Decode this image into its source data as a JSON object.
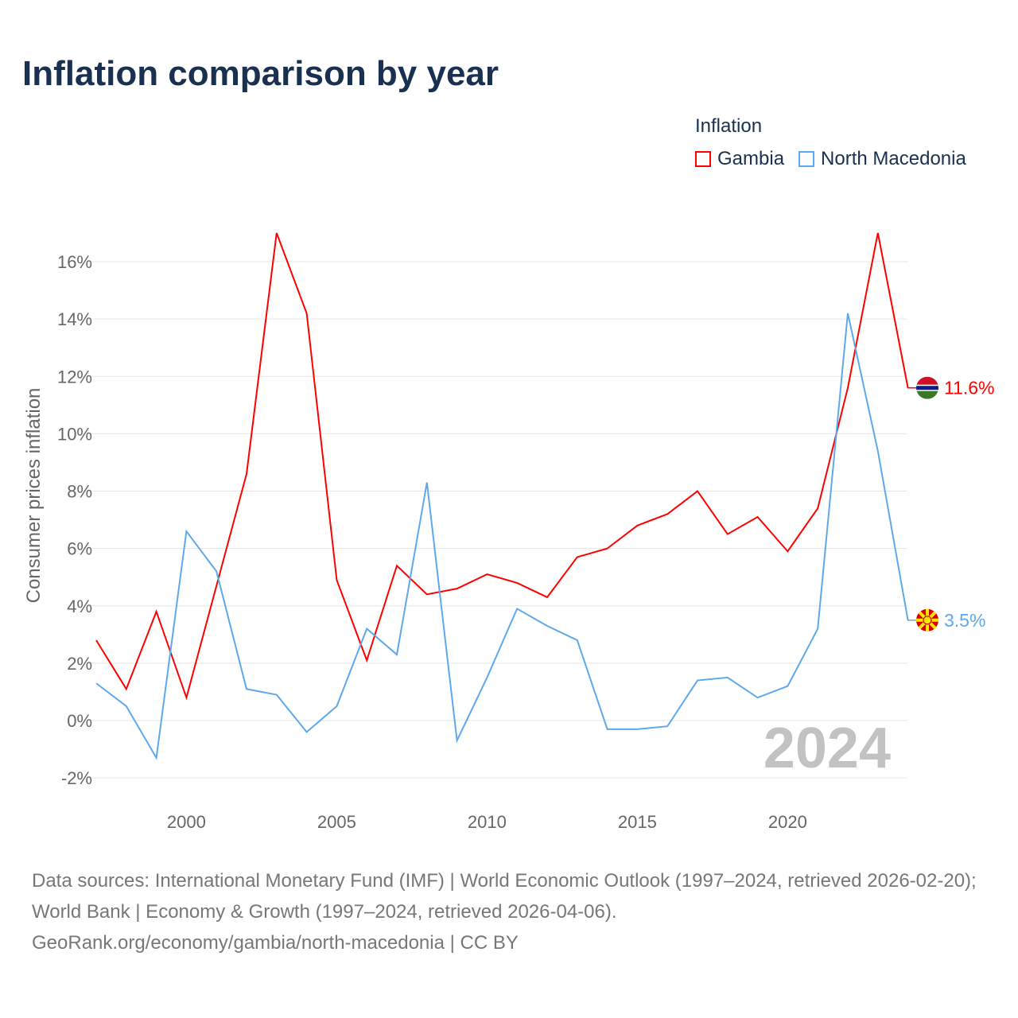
{
  "title": "Inflation comparison by year",
  "legend": {
    "title": "Inflation",
    "items": [
      {
        "label": "Gambia",
        "color": "#ff0000"
      },
      {
        "label": "North Macedonia",
        "color": "#5ea8ec"
      }
    ]
  },
  "chart_data": {
    "type": "line",
    "ylabel": "Consumer prices inflation",
    "xlabel": "",
    "xlim": [
      1997,
      2024
    ],
    "ylim": [
      -2.5,
      17.5
    ],
    "yticks": [
      -2,
      0,
      2,
      4,
      6,
      8,
      10,
      12,
      14,
      16
    ],
    "ytick_labels": [
      "-2%",
      "0%",
      "2%",
      "4%",
      "6%",
      "8%",
      "10%",
      "12%",
      "14%",
      "16%"
    ],
    "xticks": [
      2000,
      2005,
      2010,
      2015,
      2020
    ],
    "xtick_labels": [
      "2000",
      "2005",
      "2010",
      "2015",
      "2020"
    ],
    "x": [
      1997,
      1998,
      1999,
      2000,
      2001,
      2002,
      2003,
      2004,
      2005,
      2006,
      2007,
      2008,
      2009,
      2010,
      2011,
      2012,
      2013,
      2014,
      2015,
      2016,
      2017,
      2018,
      2019,
      2020,
      2021,
      2022,
      2023,
      2024
    ],
    "series": [
      {
        "name": "Gambia",
        "color": "#ff0000",
        "end_label": "11.6%",
        "values": [
          2.8,
          1.1,
          3.8,
          0.8,
          4.7,
          8.6,
          17.0,
          14.2,
          4.9,
          2.1,
          5.4,
          4.4,
          4.6,
          5.1,
          4.8,
          4.3,
          5.7,
          6.0,
          6.8,
          7.2,
          8.0,
          6.5,
          7.1,
          5.9,
          7.4,
          11.6,
          17.0,
          11.6
        ]
      },
      {
        "name": "North Macedonia",
        "color": "#5ea8ec",
        "end_label": "3.5%",
        "values": [
          1.3,
          0.5,
          -1.3,
          6.6,
          5.2,
          1.1,
          0.9,
          -0.4,
          0.5,
          3.2,
          2.3,
          8.3,
          -0.7,
          1.5,
          3.9,
          3.3,
          2.8,
          -0.3,
          -0.3,
          -0.2,
          1.4,
          1.5,
          0.8,
          1.2,
          3.2,
          14.2,
          9.4,
          3.5
        ]
      }
    ],
    "year_watermark": "2024",
    "grid": true
  },
  "footer": {
    "line1": "Data sources: International Monetary Fund (IMF) | World Economic Outlook (1997–2024, retrieved 2026-02-20); World Bank | Economy & Growth (1997–2024, retrieved 2026-04-06).",
    "line2": "GeoRank.org/economy/gambia/north-macedonia | CC BY"
  }
}
